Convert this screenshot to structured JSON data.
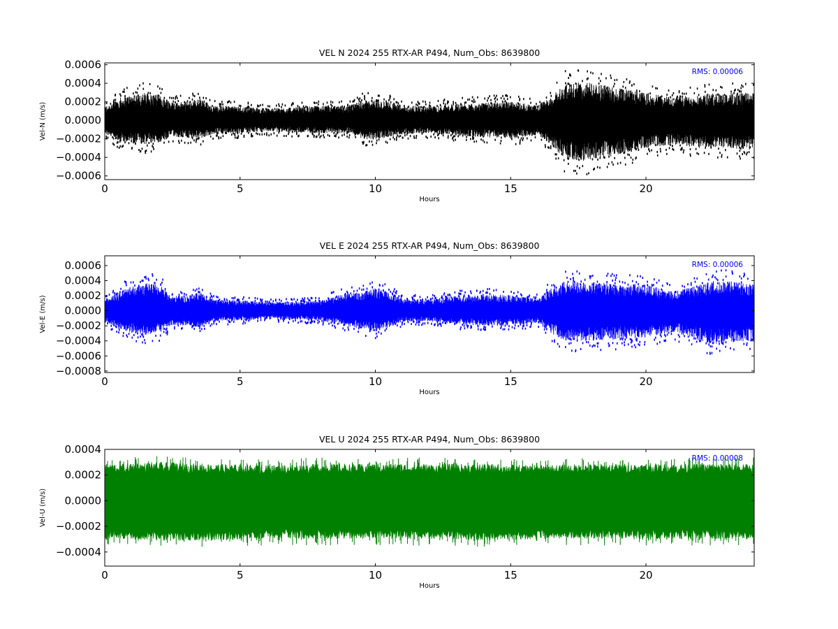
{
  "chart_data": [
    {
      "type": "line",
      "title": "VEL N 2024 255 RTX-AR  P494, Num_Obs: 8639800",
      "xlabel": "Hours",
      "ylabel": "Vel-N (m/s)",
      "xlim": [
        0,
        24
      ],
      "ylim": [
        -0.00064,
        0.00062
      ],
      "xticks": [
        0,
        5,
        10,
        15,
        20
      ],
      "xtick_labels": [
        "0",
        "5",
        "10",
        "15",
        "20"
      ],
      "yticks": [
        -0.0006,
        -0.0004,
        -0.0002,
        0.0,
        0.0002,
        0.0004,
        0.0006
      ],
      "ytick_labels": [
        "−0.0006",
        "−0.0004",
        "−0.0002",
        "0.0000",
        "0.0002",
        "0.0004",
        "0.0006"
      ],
      "annotation": "RMS:  0.00006",
      "color": "#000000",
      "style": "dots",
      "grid": false,
      "envelope": {
        "x": [
          0,
          0.5,
          1.0,
          1.5,
          2.0,
          2.5,
          3.0,
          3.5,
          4.0,
          5.0,
          6.0,
          7.0,
          8.0,
          9.0,
          9.5,
          10.0,
          10.5,
          11.0,
          12.0,
          13.0,
          14.0,
          15.0,
          16.0,
          16.5,
          17.0,
          17.5,
          18.0,
          18.5,
          19.0,
          20.0,
          21.0,
          22.0,
          23.0,
          24.0
        ],
        "upper": [
          0.00015,
          0.00024,
          0.00028,
          0.0003,
          0.00028,
          0.0002,
          0.0002,
          0.00024,
          0.00016,
          0.00015,
          0.00013,
          0.00014,
          0.00016,
          0.00015,
          0.00022,
          0.00022,
          0.0002,
          0.00016,
          0.00015,
          0.00018,
          0.00019,
          0.00021,
          0.00016,
          0.00026,
          0.0004,
          0.00042,
          0.0004,
          0.00038,
          0.00035,
          0.0003,
          0.00025,
          0.00028,
          0.0003,
          0.0003
        ],
        "lower": [
          -0.00015,
          -0.00022,
          -0.00025,
          -0.00026,
          -0.00024,
          -0.00018,
          -0.00019,
          -0.0002,
          -0.00015,
          -0.00014,
          -0.00012,
          -0.00013,
          -0.00014,
          -0.00014,
          -0.0002,
          -0.00021,
          -0.00018,
          -0.00015,
          -0.00014,
          -0.00017,
          -0.00018,
          -0.0002,
          -0.00016,
          -0.00026,
          -0.00042,
          -0.00045,
          -0.00042,
          -0.0004,
          -0.00038,
          -0.0003,
          -0.00026,
          -0.0003,
          -0.0003,
          -0.00032
        ]
      }
    },
    {
      "type": "line",
      "title": "VEL E 2024 255 RTX-AR  P494, Num_Obs: 8639800",
      "xlabel": "Hours",
      "ylabel": "Vel-E (m/s)",
      "xlim": [
        0,
        24
      ],
      "ylim": [
        -0.00082,
        0.00073
      ],
      "xticks": [
        0,
        5,
        10,
        15,
        20
      ],
      "xtick_labels": [
        "0",
        "5",
        "10",
        "15",
        "20"
      ],
      "yticks": [
        -0.0008,
        -0.0006,
        -0.0004,
        -0.0002,
        0.0,
        0.0002,
        0.0004,
        0.0006
      ],
      "ytick_labels": [
        "−0.0008",
        "−0.0006",
        "−0.0004",
        "−0.0002",
        "0.0000",
        "0.0002",
        "0.0004",
        "0.0006"
      ],
      "annotation": "RMS:  0.00006",
      "color": "#0000ff",
      "style": "dots",
      "grid": false,
      "envelope": {
        "x": [
          0,
          0.5,
          1.0,
          1.5,
          2.0,
          2.5,
          3.0,
          3.5,
          4.0,
          5.0,
          6.0,
          7.0,
          8.0,
          8.8,
          9.5,
          10.0,
          10.5,
          11.0,
          12.0,
          13.0,
          14.0,
          15.0,
          16.0,
          16.5,
          17.0,
          18.0,
          19.0,
          20.0,
          21.0,
          22.0,
          22.5,
          23.0,
          24.0
        ],
        "upper": [
          0.00015,
          0.00025,
          0.00033,
          0.00037,
          0.00035,
          0.0002,
          0.0002,
          0.00025,
          0.00015,
          0.00014,
          0.00012,
          0.00012,
          0.00014,
          0.00022,
          0.00025,
          0.0003,
          0.00025,
          0.00016,
          0.00015,
          0.0002,
          0.00022,
          0.00021,
          0.00016,
          0.0003,
          0.0004,
          0.00038,
          0.00036,
          0.00035,
          0.00025,
          0.00035,
          0.0004,
          0.0004,
          0.00035
        ],
        "lower": [
          -0.00015,
          -0.00024,
          -0.0003,
          -0.00032,
          -0.0003,
          -0.00019,
          -0.0002,
          -0.00022,
          -0.00014,
          -0.00013,
          -0.00011,
          -0.00012,
          -0.00013,
          -0.0002,
          -0.00024,
          -0.00028,
          -0.00022,
          -0.00015,
          -0.00014,
          -0.00018,
          -0.0002,
          -0.0002,
          -0.00016,
          -0.0003,
          -0.0004,
          -0.0004,
          -0.00038,
          -0.00036,
          -0.00028,
          -0.0004,
          -0.00045,
          -0.00042,
          -0.0004
        ]
      }
    },
    {
      "type": "line",
      "title": "VEL U 2024 255 RTX-AR  P494, Num_Obs: 8639800",
      "xlabel": "Hours",
      "ylabel": "Vel-U (m/s)",
      "xlim": [
        0,
        24
      ],
      "ylim": [
        -0.00051,
        0.0004
      ],
      "xticks": [
        0,
        5,
        10,
        15,
        20
      ],
      "xtick_labels": [
        "0",
        "5",
        "10",
        "15",
        "20"
      ],
      "yticks": [
        -0.0004,
        -0.0002,
        0.0,
        0.0002,
        0.0004
      ],
      "ytick_labels": [
        "−0.0004",
        "−0.0002",
        "0.0000",
        "0.0002",
        "0.0004"
      ],
      "annotation": "RMS:  0.00008",
      "color": "#008000",
      "style": "filled",
      "grid": false,
      "envelope": {
        "x": [
          0,
          2,
          4,
          6,
          8,
          10,
          12,
          14,
          16,
          18,
          20,
          22,
          24
        ],
        "upper": [
          0.00025,
          0.00026,
          0.00025,
          0.00024,
          0.00025,
          0.00025,
          0.00025,
          0.00025,
          0.00024,
          0.00025,
          0.00025,
          0.00025,
          0.00025
        ],
        "lower": [
          -0.00026,
          -0.00027,
          -0.00027,
          -0.00026,
          -0.00026,
          -0.00026,
          -0.00026,
          -0.00027,
          -0.00026,
          -0.00026,
          -0.00026,
          -0.00026,
          -0.00026
        ]
      }
    }
  ]
}
